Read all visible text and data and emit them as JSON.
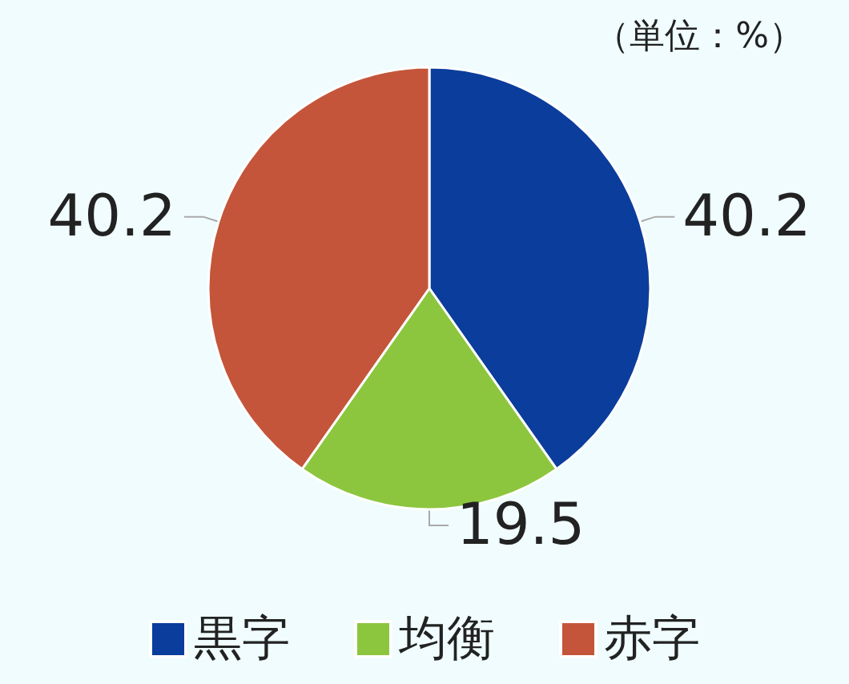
{
  "chart_data": {
    "type": "pie",
    "categories": [
      "黒字",
      "均衡",
      "赤字"
    ],
    "values": [
      40.2,
      19.5,
      40.2
    ],
    "colors": [
      "#0b3d9c",
      "#8cc63e",
      "#c4553a"
    ],
    "data_labels": true,
    "legend": "bottom",
    "annotations": [
      "（単位：%）"
    ]
  }
}
